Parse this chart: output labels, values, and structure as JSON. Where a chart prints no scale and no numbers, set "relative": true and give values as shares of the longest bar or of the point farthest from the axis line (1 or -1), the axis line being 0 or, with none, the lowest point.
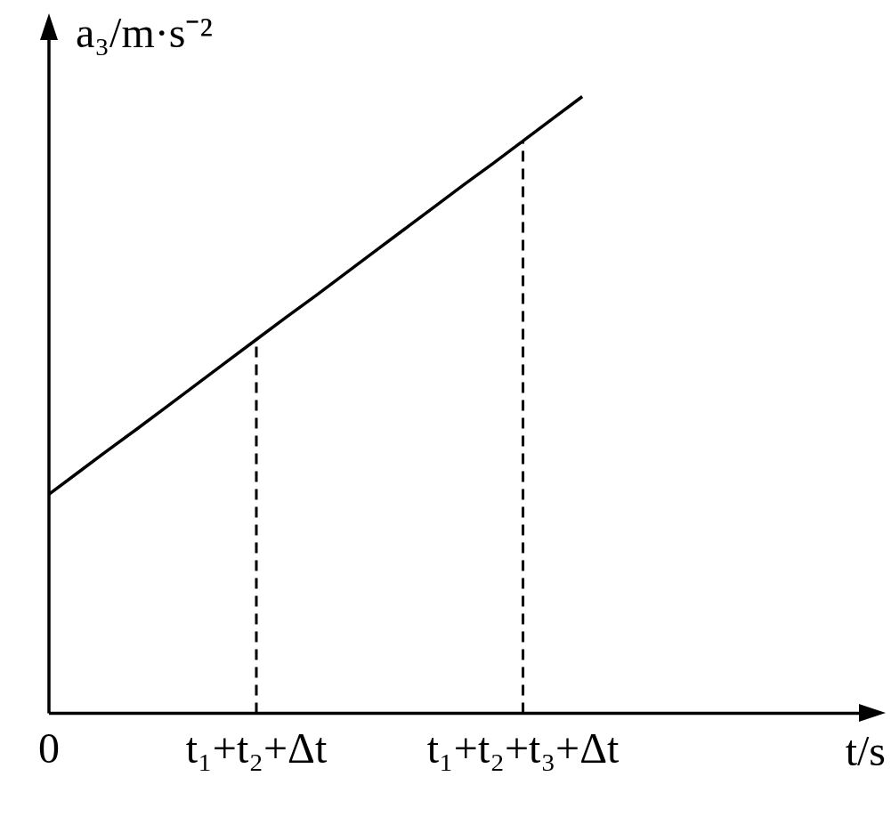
{
  "chart_data": {
    "type": "line",
    "xlabel": "t/s",
    "ylabel": "a₃/m·s⁻²",
    "relative": true,
    "categories": [
      "0",
      null,
      null,
      null,
      null,
      null,
      null,
      "t₁+t₂+Δt",
      null,
      null,
      null,
      null,
      null,
      null,
      null,
      null,
      "t₁+t₂+t₃+Δt",
      null,
      null,
      null,
      null,
      null,
      null,
      null,
      null,
      null,
      null,
      null,
      null
    ],
    "series": [
      {
        "color": "#000000",
        "values": [
          0.355,
          0.391,
          0.427,
          0.462,
          0.498,
          0.534,
          0.57,
          0.606,
          0.642,
          0.677,
          0.713,
          0.749,
          0.785,
          0.821,
          0.857,
          0.892,
          0.928,
          0.964,
          1,
          null,
          null,
          null,
          null,
          null,
          null,
          null,
          null,
          null,
          null
        ]
      }
    ],
    "ref_lines": [
      {
        "axis": "x",
        "value": "t₁+t₂+Δt",
        "line_style": "dashed",
        "color": "#000000"
      },
      {
        "axis": "x",
        "value": "t₁+t₂+t₃+Δt",
        "line_style": "dashed",
        "color": "#000000"
      }
    ],
    "grid": false,
    "legend": false,
    "marker": "none",
    "line_style": "solid"
  }
}
